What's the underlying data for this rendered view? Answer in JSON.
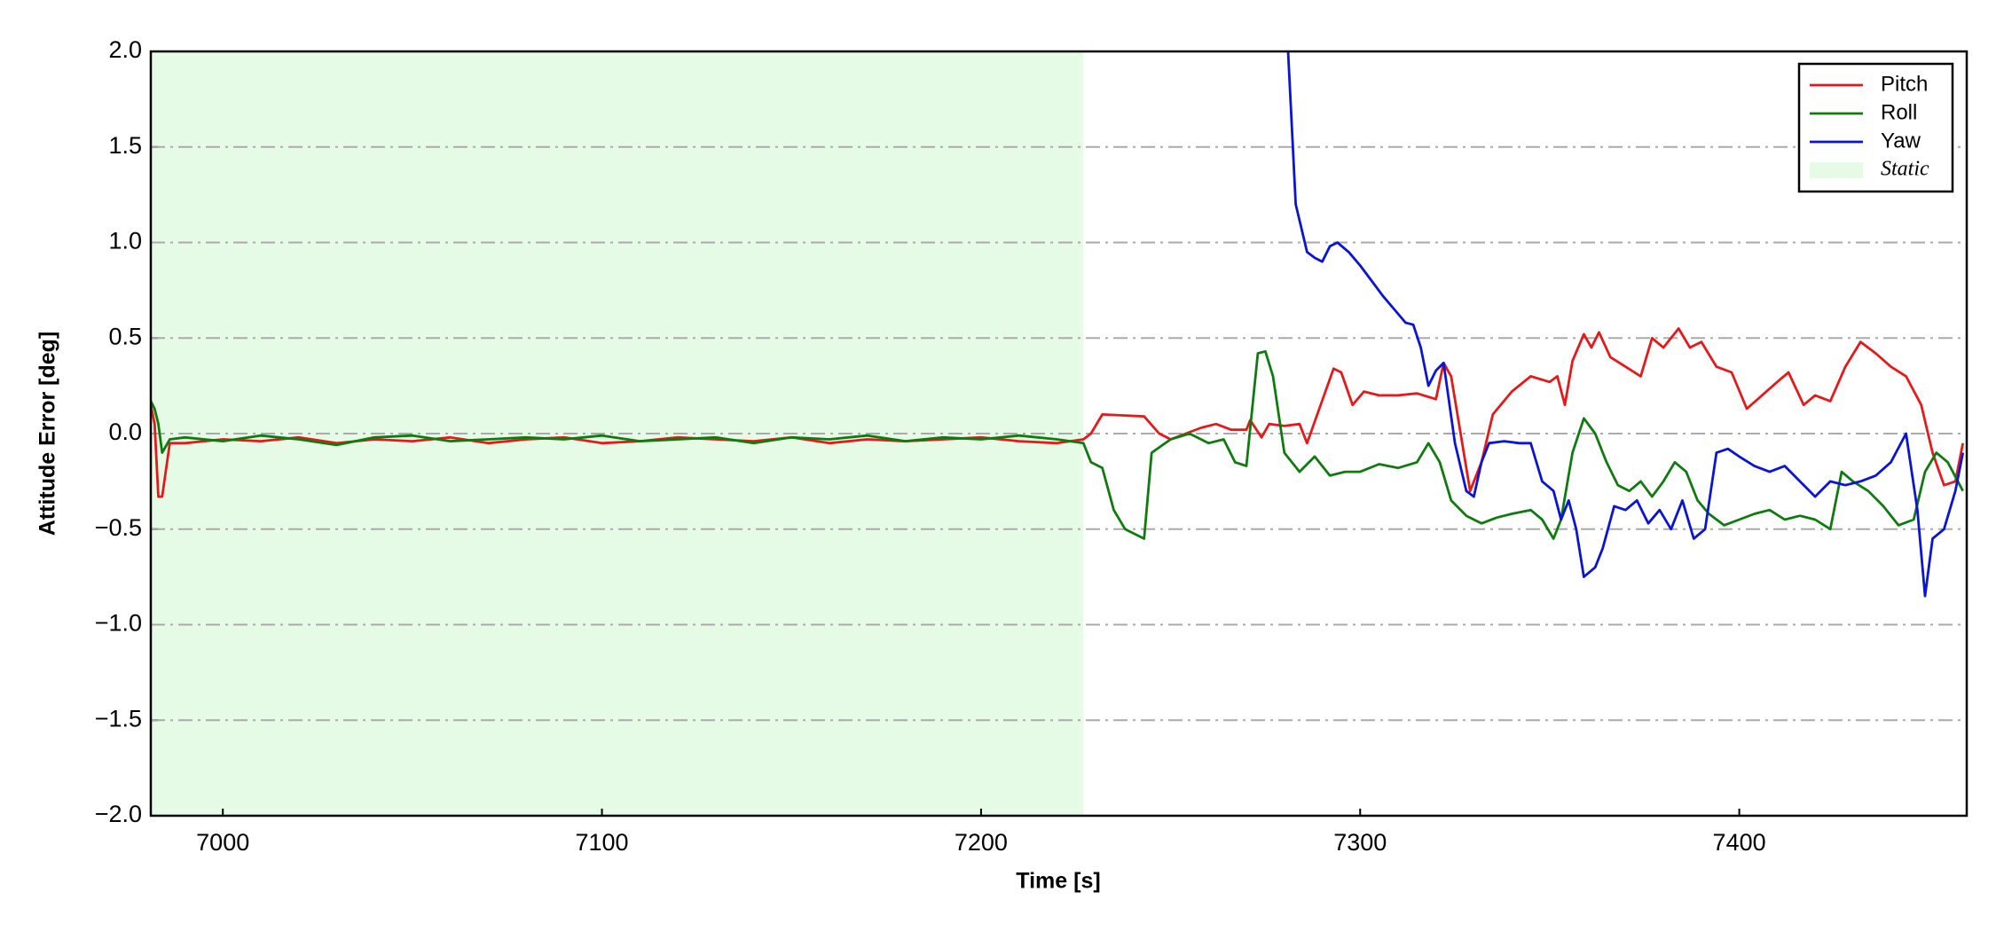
{
  "chart_data": {
    "type": "line",
    "xlabel": "Time [s]",
    "ylabel": "Attitude Error [deg]",
    "xlim": [
      6981,
      7460
    ],
    "ylim": [
      -2.0,
      2.0
    ],
    "xticks": [
      7000,
      7100,
      7200,
      7300,
      7400
    ],
    "yticks": [
      {
        "value": -2.0,
        "label": "−2.0"
      },
      {
        "value": -1.5,
        "label": "−1.5"
      },
      {
        "value": -1.0,
        "label": "−1.0"
      },
      {
        "value": -0.5,
        "label": "−0.5"
      },
      {
        "value": 0.0,
        "label": "0.0"
      },
      {
        "value": 0.5,
        "label": "0.5"
      },
      {
        "value": 1.0,
        "label": "1.0"
      },
      {
        "value": 1.5,
        "label": "1.5"
      },
      {
        "value": 2.0,
        "label": "2.0"
      }
    ],
    "grid": true,
    "legend": "upper right",
    "shaded_region": {
      "label": "Static",
      "xmin": 6981,
      "xmax": 7227,
      "color": "#e6fbe6"
    },
    "series": [
      {
        "name": "Pitch",
        "color": "#e31a1c",
        "x": [
          6981,
          6982,
          6983,
          6984,
          6986,
          6990,
          7000,
          7010,
          7020,
          7030,
          7040,
          7050,
          7060,
          7070,
          7080,
          7090,
          7100,
          7110,
          7120,
          7130,
          7140,
          7150,
          7160,
          7170,
          7180,
          7190,
          7200,
          7210,
          7220,
          7227,
          7229,
          7232,
          7243,
          7247,
          7250,
          7258,
          7262,
          7266,
          7270,
          7271,
          7274,
          7276,
          7280,
          7284,
          7286,
          7293,
          7295,
          7298,
          7301,
          7305,
          7310,
          7315,
          7320,
          7322,
          7324,
          7329,
          7332,
          7335,
          7340,
          7345,
          7350,
          7352,
          7354,
          7356,
          7359,
          7361,
          7363,
          7366,
          7370,
          7374,
          7377,
          7380,
          7384,
          7387,
          7390,
          7394,
          7398,
          7402,
          7406,
          7410,
          7413,
          7417,
          7420,
          7424,
          7428,
          7432,
          7436,
          7440,
          7444,
          7448,
          7451,
          7454,
          7457,
          7459
        ],
        "values": [
          0.15,
          0.05,
          -0.33,
          -0.33,
          -0.05,
          -0.05,
          -0.03,
          -0.04,
          -0.02,
          -0.05,
          -0.03,
          -0.04,
          -0.02,
          -0.05,
          -0.03,
          -0.02,
          -0.05,
          -0.04,
          -0.02,
          -0.03,
          -0.04,
          -0.02,
          -0.05,
          -0.03,
          -0.04,
          -0.03,
          -0.02,
          -0.04,
          -0.05,
          -0.03,
          0.0,
          0.1,
          0.09,
          0.0,
          -0.03,
          0.03,
          0.05,
          0.02,
          0.02,
          0.07,
          -0.02,
          0.05,
          0.04,
          0.05,
          -0.05,
          0.34,
          0.32,
          0.15,
          0.22,
          0.2,
          0.2,
          0.21,
          0.18,
          0.37,
          0.3,
          -0.3,
          -0.15,
          0.1,
          0.22,
          0.3,
          0.27,
          0.3,
          0.15,
          0.38,
          0.52,
          0.45,
          0.53,
          0.4,
          0.35,
          0.3,
          0.5,
          0.45,
          0.55,
          0.45,
          0.48,
          0.35,
          0.32,
          0.13,
          0.2,
          0.27,
          0.32,
          0.15,
          0.2,
          0.17,
          0.35,
          0.48,
          0.42,
          0.35,
          0.3,
          0.15,
          -0.1,
          -0.27,
          -0.25,
          -0.05
        ]
      },
      {
        "name": "Roll",
        "color": "#107a10",
        "x": [
          6981,
          6982,
          6983,
          6984,
          6986,
          6990,
          7000,
          7010,
          7020,
          7030,
          7040,
          7050,
          7060,
          7070,
          7080,
          7090,
          7100,
          7110,
          7120,
          7130,
          7140,
          7150,
          7160,
          7170,
          7180,
          7190,
          7200,
          7210,
          7220,
          7227,
          7229,
          7232,
          7235,
          7238,
          7243,
          7245,
          7250,
          7255,
          7260,
          7264,
          7267,
          7270,
          7273,
          7275,
          7277,
          7280,
          7284,
          7288,
          7292,
          7296,
          7300,
          7305,
          7310,
          7315,
          7318,
          7321,
          7324,
          7328,
          7332,
          7336,
          7340,
          7345,
          7348,
          7351,
          7353,
          7356,
          7359,
          7362,
          7365,
          7368,
          7371,
          7374,
          7377,
          7380,
          7383,
          7386,
          7389,
          7392,
          7396,
          7400,
          7404,
          7408,
          7412,
          7416,
          7420,
          7424,
          7427,
          7430,
          7434,
          7438,
          7442,
          7446,
          7449,
          7452,
          7455,
          7459
        ],
        "values": [
          0.17,
          0.13,
          0.05,
          -0.1,
          -0.03,
          -0.02,
          -0.04,
          -0.01,
          -0.03,
          -0.06,
          -0.02,
          -0.01,
          -0.04,
          -0.03,
          -0.02,
          -0.03,
          -0.01,
          -0.04,
          -0.03,
          -0.02,
          -0.05,
          -0.02,
          -0.03,
          -0.01,
          -0.04,
          -0.02,
          -0.03,
          -0.01,
          -0.03,
          -0.05,
          -0.15,
          -0.18,
          -0.4,
          -0.5,
          -0.55,
          -0.1,
          -0.03,
          0.0,
          -0.05,
          -0.03,
          -0.15,
          -0.17,
          0.42,
          0.43,
          0.3,
          -0.1,
          -0.2,
          -0.12,
          -0.22,
          -0.2,
          -0.2,
          -0.16,
          -0.18,
          -0.15,
          -0.05,
          -0.15,
          -0.35,
          -0.43,
          -0.47,
          -0.44,
          -0.42,
          -0.4,
          -0.45,
          -0.55,
          -0.45,
          -0.1,
          0.08,
          0.0,
          -0.15,
          -0.27,
          -0.3,
          -0.25,
          -0.33,
          -0.25,
          -0.15,
          -0.2,
          -0.35,
          -0.42,
          -0.48,
          -0.45,
          -0.42,
          -0.4,
          -0.45,
          -0.43,
          -0.45,
          -0.5,
          -0.2,
          -0.25,
          -0.3,
          -0.38,
          -0.48,
          -0.45,
          -0.2,
          -0.1,
          -0.15,
          -0.3
        ]
      },
      {
        "name": "Yaw",
        "color": "#0a14d2",
        "x": [
          7281,
          7283,
          7286,
          7288,
          7290,
          7292,
          7294,
          7297,
          7300,
          7303,
          7306,
          7309,
          7312,
          7314,
          7316,
          7318,
          7320,
          7322,
          7325,
          7328,
          7330,
          7332,
          7334,
          7338,
          7342,
          7345,
          7348,
          7351,
          7353,
          7355,
          7357,
          7359,
          7362,
          7364,
          7367,
          7370,
          7373,
          7376,
          7379,
          7382,
          7385,
          7388,
          7391,
          7394,
          7397,
          7400,
          7404,
          7408,
          7412,
          7416,
          7420,
          7424,
          7428,
          7432,
          7436,
          7440,
          7444,
          7447,
          7449,
          7451,
          7454,
          7457,
          7459
        ],
        "values": [
          2.0,
          1.2,
          0.95,
          0.92,
          0.9,
          0.98,
          1.0,
          0.95,
          0.88,
          0.8,
          0.72,
          0.65,
          0.58,
          0.57,
          0.45,
          0.25,
          0.33,
          0.37,
          -0.05,
          -0.3,
          -0.33,
          -0.15,
          -0.05,
          -0.04,
          -0.05,
          -0.05,
          -0.25,
          -0.3,
          -0.45,
          -0.35,
          -0.5,
          -0.75,
          -0.7,
          -0.6,
          -0.38,
          -0.4,
          -0.35,
          -0.47,
          -0.4,
          -0.5,
          -0.35,
          -0.55,
          -0.5,
          -0.1,
          -0.08,
          -0.12,
          -0.17,
          -0.2,
          -0.17,
          -0.25,
          -0.33,
          -0.25,
          -0.27,
          -0.25,
          -0.22,
          -0.15,
          0.0,
          -0.4,
          -0.85,
          -0.55,
          -0.5,
          -0.3,
          -0.1
        ]
      }
    ]
  }
}
